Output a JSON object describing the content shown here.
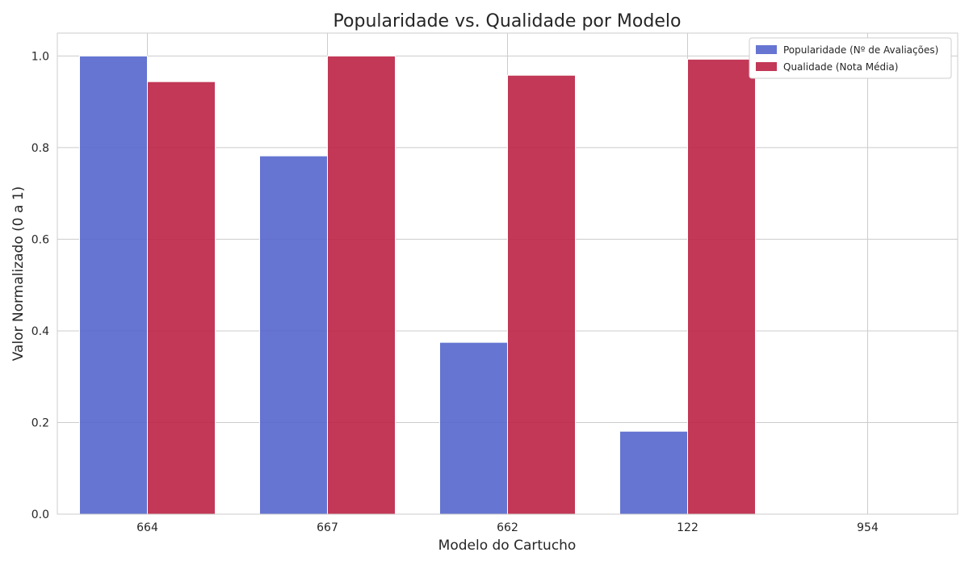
{
  "chart_data": {
    "type": "bar",
    "title": "Popularidade vs. Qualidade por Modelo",
    "xlabel": "Modelo do Cartucho",
    "ylabel": "Valor Normalizado (0 a 1)",
    "categories": [
      "664",
      "667",
      "662",
      "122",
      "954"
    ],
    "series": [
      {
        "name": "Popularidade (Nº de Avaliações)",
        "color": "#5566cc",
        "values": [
          1.0,
          0.782,
          0.375,
          0.181,
          0.0
        ]
      },
      {
        "name": "Qualidade (Nota Média)",
        "color": "#bb2244",
        "values": [
          0.944,
          1.0,
          0.958,
          0.993,
          0.0
        ]
      }
    ],
    "ylim": [
      0,
      1.05
    ],
    "yticks": [
      0.0,
      0.2,
      0.4,
      0.6,
      0.8,
      1.0
    ],
    "ytick_labels": [
      "0.0",
      "0.2",
      "0.4",
      "0.6",
      "0.8",
      "1.0"
    ],
    "grid": true,
    "legend_position": "top-right"
  }
}
